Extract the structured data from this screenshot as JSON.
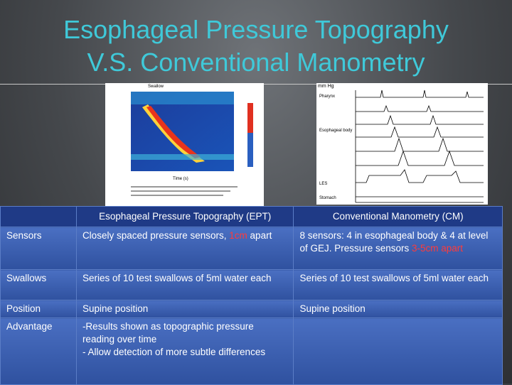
{
  "title": [
    "Esophageal Pressure Topography",
    "V.S. Conventional Manometry"
  ],
  "figure_ept": {
    "labels": [
      "Swallow",
      "Time (s)"
    ]
  },
  "figure_cm": {
    "unit": "mm Hg",
    "labels": [
      "Pharynx",
      "Esophageal body",
      "LES",
      "Stomach"
    ]
  },
  "table": {
    "header": [
      "Esophageal Pressure Topography (EPT)",
      "Conventional Manometry (CM)"
    ],
    "rows": [
      {
        "label": "Sensors",
        "cells": [
          [
            {
              "text": "Closely spaced pressure sensors, "
            },
            {
              "text": "1cm",
              "color": "#ff3b3b"
            },
            {
              "text": " apart"
            }
          ],
          [
            {
              "text": "8 sensors: 4 in esophageal body & 4 at level of GEJ. Pressure sensors "
            },
            {
              "text": "3-5cm apart",
              "color": "#ff3b3b"
            }
          ]
        ]
      },
      {
        "label": "Swallows",
        "cells": [
          [
            {
              "text": "Series of 10 test swallows of 5ml water each"
            }
          ],
          [
            {
              "text": "Series of 10 test swallows of 5ml water each"
            }
          ]
        ]
      },
      {
        "label": "Position",
        "cells": [
          [
            {
              "text": "Supine position"
            }
          ],
          [
            {
              "text": "Supine position"
            }
          ]
        ]
      },
      {
        "label": "Advantage",
        "cells": [
          [
            {
              "text": "-Results shown as topographic pressure reading over time"
            },
            {
              "text": "- Allow detection of more subtle differences",
              "newline": true
            }
          ]
        ]
      }
    ]
  }
}
